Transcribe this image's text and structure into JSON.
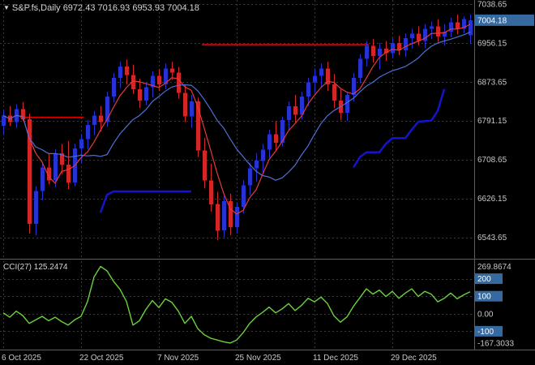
{
  "header": {
    "collapse_icon": "▼",
    "symbol_line": "S&P.fs,Daily 6972.43 7016.93 6953.93 7004.18"
  },
  "indicator_header": {
    "label": "CCI(27) 125.2474"
  },
  "colors": {
    "background": "#000000",
    "grid": "#3a3a3a",
    "axis_text": "#c8c8c8",
    "separator": "#5e5e5e",
    "tag_bg": "#35699f",
    "tag_text": "#ffffff"
  },
  "price_axis": {
    "levels": [
      {
        "label": "7038.65",
        "value": 7038.65
      },
      {
        "label": "6956.15",
        "value": 6956.15
      },
      {
        "label": "6873.65",
        "value": 6873.65
      },
      {
        "label": "6791.15",
        "value": 6791.15
      },
      {
        "label": "6708.65",
        "value": 6708.65
      },
      {
        "label": "6626.15",
        "value": 6626.15
      },
      {
        "label": "6543.65",
        "value": 6543.65
      }
    ],
    "current": {
      "label": "7004.18",
      "value": 7004.18
    }
  },
  "time_axis": {
    "ticks": [
      {
        "i": 0,
        "label": "6 Oct 2025"
      },
      {
        "i": 12,
        "label": "22 Oct 2025"
      },
      {
        "i": 24,
        "label": "7 Nov 2025"
      },
      {
        "i": 36,
        "label": "25 Nov 2025"
      },
      {
        "i": 48,
        "label": "11 Dec 2025"
      },
      {
        "i": 60,
        "label": "29 Dec 2025"
      }
    ]
  },
  "cci_axis": {
    "max_label": "269.8674",
    "max_value": 269.8674,
    "zero_label": "0.00",
    "zero_value": 0,
    "min_label": "-167.3033",
    "min_value": -167.3033,
    "tags": [
      {
        "label": "200",
        "value": 200
      },
      {
        "label": "100",
        "value": 100
      },
      {
        "label": "-100",
        "value": -100
      }
    ]
  },
  "chart_data": {
    "type": "candlestick",
    "title": "S&P.fs Daily candlestick chart with CCI(27) indicator panel",
    "symbol": "S&P.fs",
    "timeframe": "Daily",
    "last_bar_ohlc": {
      "open": 6972.43,
      "high": 7016.93,
      "low": 6953.93,
      "close": 7004.18
    },
    "price_range": [
      6500,
      7047
    ],
    "candle_spacing_px": 8,
    "colors": {
      "up": "#2632d4",
      "down": "#d42626"
    },
    "candles": [
      [
        6780,
        6815,
        6762,
        6802
      ],
      [
        6802,
        6822,
        6780,
        6788
      ],
      [
        6788,
        6826,
        6776,
        6816
      ],
      [
        6816,
        6831,
        6790,
        6794
      ],
      [
        6794,
        6806,
        6552,
        6572
      ],
      [
        6572,
        6652,
        6548,
        6642
      ],
      [
        6642,
        6702,
        6622,
        6692
      ],
      [
        6692,
        6722,
        6656,
        6664
      ],
      [
        6664,
        6730,
        6650,
        6722
      ],
      [
        6722,
        6742,
        6678,
        6698
      ],
      [
        6698,
        6748,
        6646,
        6660
      ],
      [
        6660,
        6742,
        6652,
        6732
      ],
      [
        6732,
        6762,
        6702,
        6752
      ],
      [
        6752,
        6792,
        6730,
        6782
      ],
      [
        6782,
        6812,
        6760,
        6802
      ],
      [
        6802,
        6822,
        6768,
        6788
      ],
      [
        6788,
        6852,
        6778,
        6842
      ],
      [
        6842,
        6892,
        6830,
        6882
      ],
      [
        6882,
        6916,
        6860,
        6906
      ],
      [
        6906,
        6921,
        6868,
        6888
      ],
      [
        6888,
        6910,
        6848,
        6858
      ],
      [
        6858,
        6880,
        6818,
        6834
      ],
      [
        6834,
        6872,
        6824,
        6862
      ],
      [
        6862,
        6896,
        6840,
        6886
      ],
      [
        6886,
        6901,
        6854,
        6868
      ],
      [
        6868,
        6912,
        6858,
        6902
      ],
      [
        6902,
        6916,
        6878,
        6893
      ],
      [
        6893,
        6905,
        6838,
        6850
      ],
      [
        6850,
        6866,
        6788,
        6800
      ],
      [
        6800,
        6846,
        6776,
        6832
      ],
      [
        6832,
        6840,
        6714,
        6728
      ],
      [
        6728,
        6754,
        6648,
        6664
      ],
      [
        6664,
        6700,
        6598,
        6614
      ],
      [
        6614,
        6640,
        6538,
        6558
      ],
      [
        6558,
        6632,
        6544,
        6620
      ],
      [
        6620,
        6636,
        6548,
        6565
      ],
      [
        6565,
        6618,
        6552,
        6608
      ],
      [
        6608,
        6665,
        6594,
        6654
      ],
      [
        6654,
        6702,
        6632,
        6690
      ],
      [
        6690,
        6722,
        6662,
        6706
      ],
      [
        6706,
        6742,
        6680,
        6730
      ],
      [
        6730,
        6772,
        6712,
        6762
      ],
      [
        6762,
        6790,
        6728,
        6744
      ],
      [
        6744,
        6800,
        6736,
        6792
      ],
      [
        6792,
        6832,
        6772,
        6822
      ],
      [
        6822,
        6846,
        6788,
        6804
      ],
      [
        6804,
        6852,
        6794,
        6842
      ],
      [
        6842,
        6882,
        6822,
        6872
      ],
      [
        6872,
        6902,
        6850,
        6886
      ],
      [
        6886,
        6912,
        6862,
        6902
      ],
      [
        6902,
        6916,
        6854,
        6868
      ],
      [
        6868,
        6890,
        6818,
        6834
      ],
      [
        6834,
        6858,
        6792,
        6808
      ],
      [
        6808,
        6852,
        6790,
        6846
      ],
      [
        6846,
        6892,
        6832,
        6882
      ],
      [
        6882,
        6932,
        6870,
        6922
      ],
      [
        6922,
        6960,
        6906,
        6950
      ],
      [
        6950,
        6964,
        6914,
        6928
      ],
      [
        6928,
        6956,
        6900,
        6944
      ],
      [
        6944,
        6960,
        6918,
        6934
      ],
      [
        6934,
        6966,
        6924,
        6956
      ],
      [
        6956,
        6971,
        6930,
        6940
      ],
      [
        6940,
        6976,
        6926,
        6966
      ],
      [
        6966,
        6986,
        6944,
        6976
      ],
      [
        6976,
        6991,
        6950,
        6960
      ],
      [
        6960,
        6996,
        6945,
        6986
      ],
      [
        6986,
        7001,
        6964,
        6991
      ],
      [
        6991,
        7006,
        6958,
        6970
      ],
      [
        6970,
        6996,
        6950,
        6980
      ],
      [
        6980,
        7010,
        6968,
        7000
      ],
      [
        7000,
        7016,
        6974,
        6986
      ],
      [
        6986,
        7012,
        6977,
        7007
      ],
      [
        6972.43,
        7016.93,
        6953.93,
        7004.18
      ]
    ],
    "overlays": [
      {
        "name": "ma-fast-red",
        "type": "sma",
        "period": 5,
        "color": "#e23b3b"
      },
      {
        "name": "ma-slow-blue",
        "type": "sma",
        "period": 13,
        "color": "#4e6fd6"
      }
    ],
    "objects": [
      {
        "type": "hline-segment",
        "price": 6798,
        "from": 3,
        "to": 12,
        "color": "#d40000"
      },
      {
        "type": "hline-segment",
        "price": 6952,
        "from": 31,
        "to": 56,
        "color": "#d40000"
      },
      {
        "type": "polyline",
        "color": "#1414cd",
        "width": 2.5,
        "points": [
          [
            15,
            6596
          ],
          [
            16,
            6634
          ],
          [
            17,
            6641
          ],
          [
            29,
            6641
          ]
        ]
      },
      {
        "type": "polyline",
        "color": "#1414cd",
        "width": 2.5,
        "points": [
          [
            54,
            6692
          ],
          [
            55,
            6714
          ],
          [
            56,
            6724
          ],
          [
            58,
            6724
          ],
          [
            59,
            6742
          ],
          [
            60,
            6754
          ],
          [
            62,
            6754
          ],
          [
            63,
            6772
          ],
          [
            64,
            6789
          ],
          [
            66,
            6791
          ],
          [
            67,
            6812
          ],
          [
            68,
            6858
          ]
        ]
      }
    ],
    "indicator": {
      "name": "CCI",
      "period": 27,
      "current_value": 125.2474,
      "range": [
        300,
        -200
      ],
      "levels": [
        200,
        100,
        0,
        -100
      ],
      "color": "#6ad13d",
      "series": [
        5,
        -20,
        15,
        -10,
        -55,
        -35,
        -15,
        -40,
        -20,
        -45,
        -65,
        -35,
        -15,
        70,
        210,
        269.8674,
        245,
        185,
        140,
        70,
        -65,
        -40,
        25,
        75,
        35,
        85,
        65,
        15,
        -55,
        -15,
        -85,
        -120,
        -140,
        -150,
        -160,
        -167.3033,
        -150,
        -108,
        -55,
        -18,
        8,
        38,
        5,
        28,
        58,
        18,
        48,
        88,
        68,
        95,
        58,
        -12,
        -48,
        -18,
        42,
        92,
        142,
        112,
        135,
        98,
        128,
        88,
        118,
        142,
        98,
        128,
        112,
        68,
        88,
        118,
        85,
        108,
        125.2474
      ]
    }
  }
}
